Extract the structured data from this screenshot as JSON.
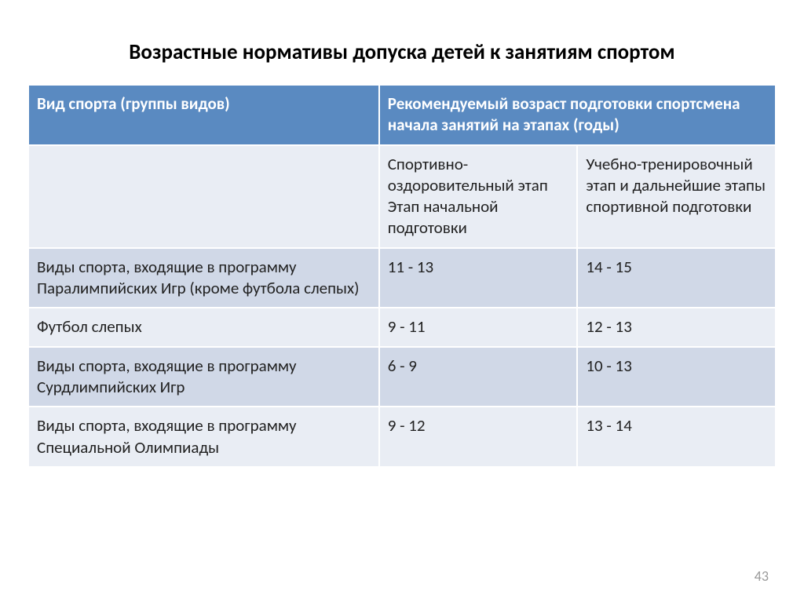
{
  "title": "Возрастные нормативы допуска детей к занятиям  спортом",
  "page_number": "43",
  "table": {
    "header_bg": "#5a8ac1",
    "header_fg": "#ffffff",
    "row_light_bg": "#e9edf4",
    "row_dark_bg": "#d0d8e7",
    "columns": {
      "col1_header": "Вид спорта (группы видов)",
      "col2_3_header": "Рекомендуемый возраст подготовки спортсмена начала занятий на этапах  (годы)",
      "sub_col1": "",
      "sub_col2": "Спортивно-оздоровительный этап Этап начальной подготовки",
      "sub_col3": "Учебно-тренировочный этап и дальнейшие этапы спортивной подготовки"
    },
    "rows": [
      {
        "c1": "  Виды спорта, входящие в программу Паралимпийских Игр (кроме футбола слепых)",
        "c2": "11 - 13",
        "c3": "14 - 15"
      },
      {
        "c1": "  Футбол слепых",
        "c2": "9 - 11",
        "c3": "12 - 13"
      },
      {
        "c1": "  Виды спорта, входящие в программу Сурдлимпийских Игр",
        "c2": "6 - 9",
        "c3": "10 - 13"
      },
      {
        "c1": "  Виды спорта, входящие в программу Специальной Олимпиады",
        "c2": "9 - 12",
        "c3": "13 - 14"
      }
    ]
  }
}
